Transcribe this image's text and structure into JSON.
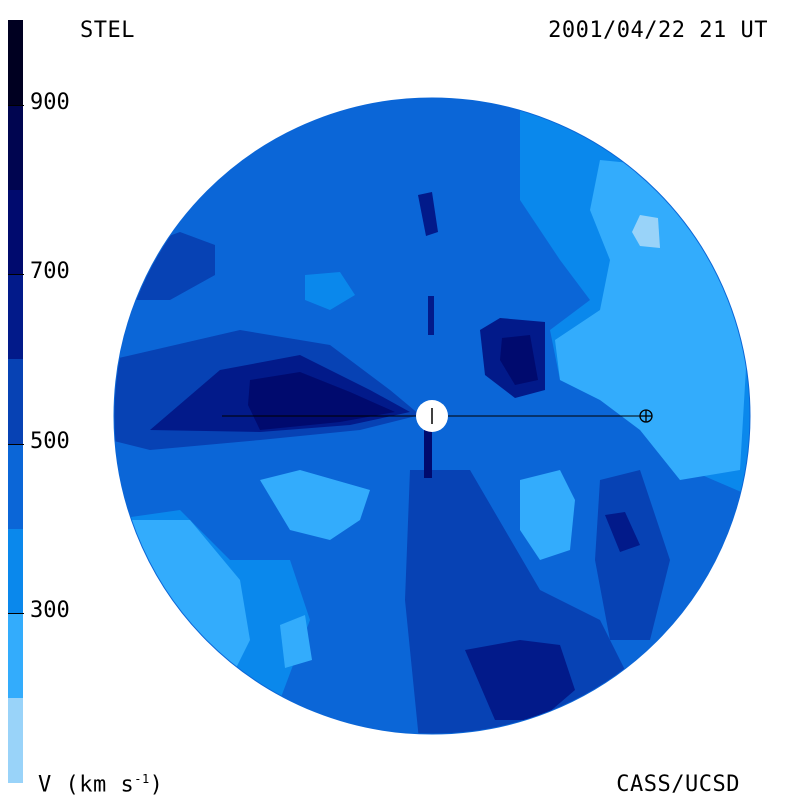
{
  "header": {
    "observatory": "STEL",
    "timestamp": "2001/04/22 21 UT"
  },
  "footer": {
    "credit": "CASS/UCSD",
    "units_prefix": "V (km s",
    "units_exp": "-1",
    "units_suffix": ")"
  },
  "colorbar": {
    "tick_labels": [
      "900",
      "700",
      "500",
      "300"
    ],
    "tick_values": [
      900,
      700,
      500,
      300
    ],
    "range": [
      100,
      1000
    ],
    "levels": [
      {
        "from": 100,
        "to": 200,
        "color": "#99d3f9"
      },
      {
        "from": 200,
        "to": 300,
        "color": "#33acfc"
      },
      {
        "from": 300,
        "to": 400,
        "color": "#0a88ec"
      },
      {
        "from": 400,
        "to": 500,
        "color": "#0b66d7"
      },
      {
        "from": 500,
        "to": 600,
        "color": "#0742b4"
      },
      {
        "from": 600,
        "to": 700,
        "color": "#021a8a"
      },
      {
        "from": 700,
        "to": 800,
        "color": "#000a6e"
      },
      {
        "from": 800,
        "to": 900,
        "color": "#000550"
      },
      {
        "from": 900,
        "to": 1000,
        "color": "#000021"
      }
    ]
  },
  "map": {
    "background_speed_class": 400,
    "sun_color": "#ffffff",
    "earth_symbol": "circle-plus"
  }
}
